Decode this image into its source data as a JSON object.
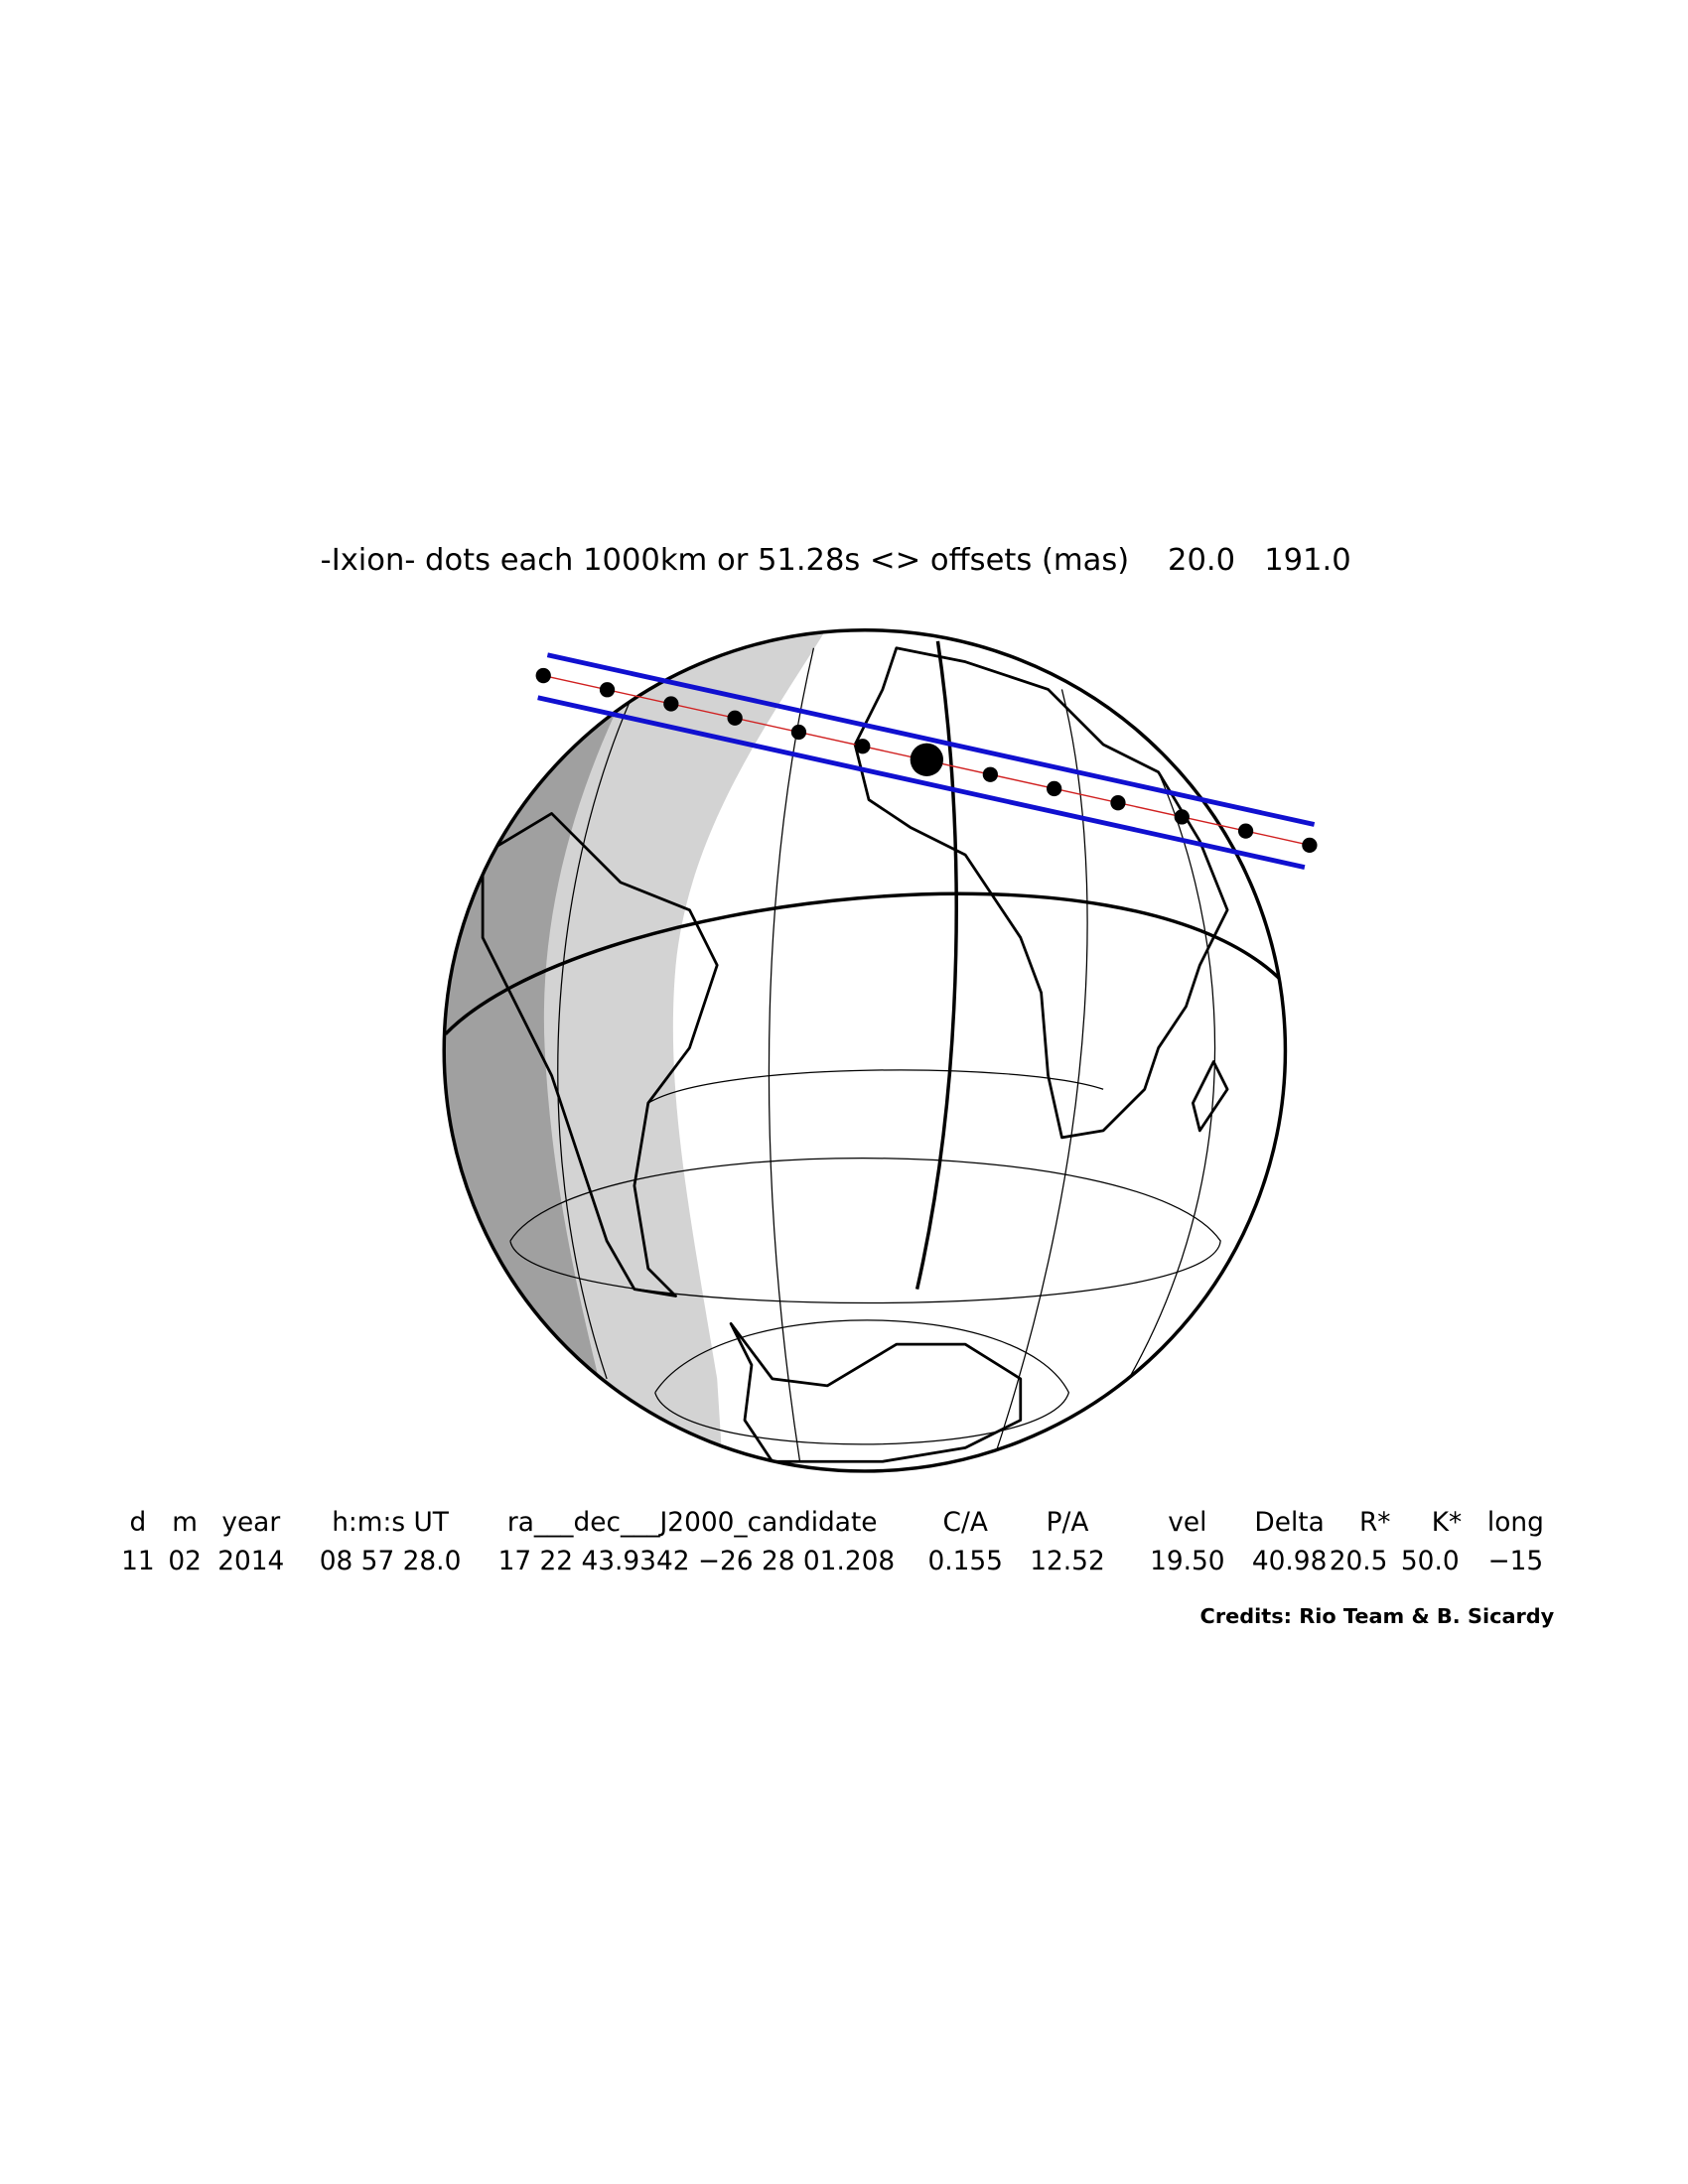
{
  "title": "-Ixion- dots each 1000km or 51.28s <> offsets (mas)    20.0   191.0",
  "table": {
    "headers": [
      "d",
      "m",
      "year",
      "h:m:s UT",
      "ra___dec___J2000_candidate",
      "C/A",
      "P/A",
      "vel",
      "Delta",
      "R*",
      "K*",
      "long"
    ],
    "values": [
      "11",
      "02",
      "2014",
      "08 57 28.0",
      "17 22 43.9342  −26 28 01.208",
      "0.155",
      "12.52",
      "19.50",
      "40.98",
      "20.5",
      "50.0",
      "−15"
    ]
  },
  "credits": "Credits: Rio Team & B. Sicardy"
}
